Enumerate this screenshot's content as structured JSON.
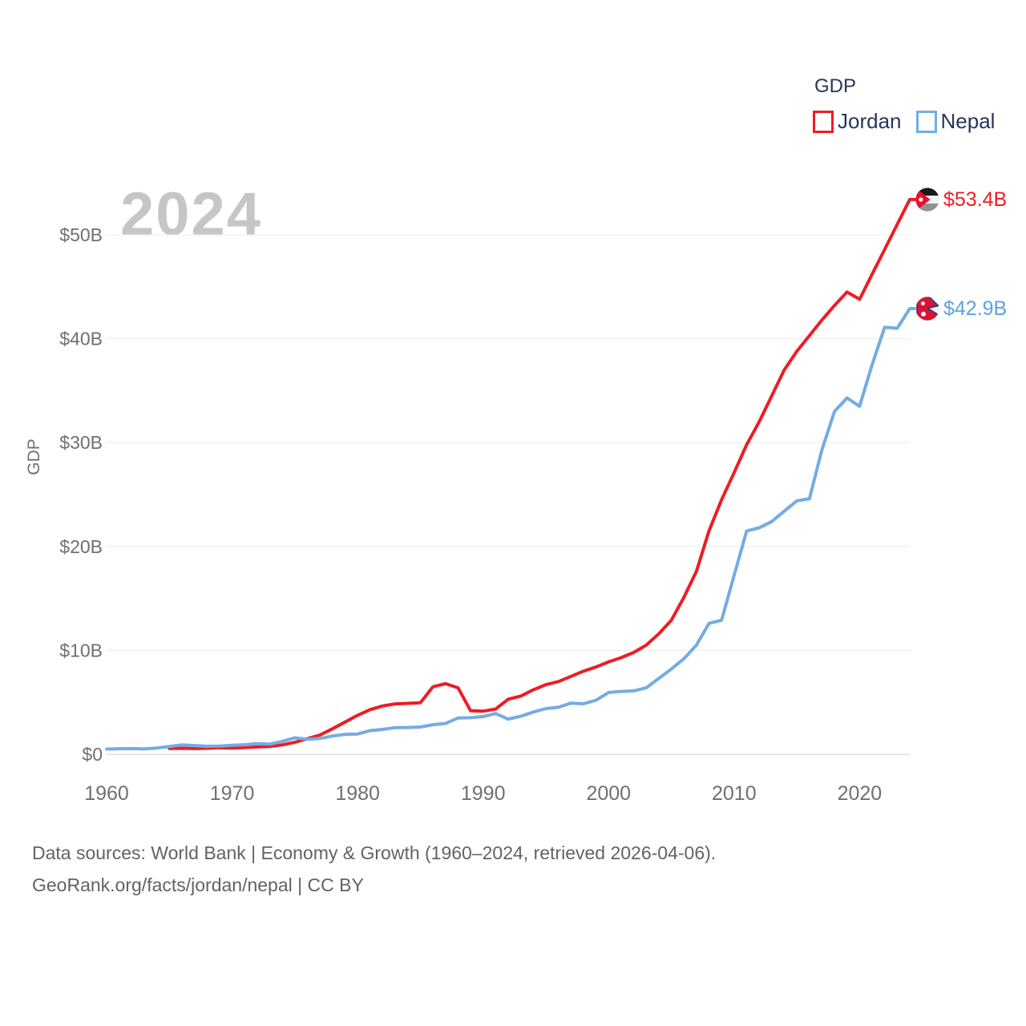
{
  "legend": {
    "title": "GDP",
    "items": [
      {
        "label": "Jordan",
        "color": "#ee1c24"
      },
      {
        "label": "Nepal",
        "color": "#74ace2"
      }
    ]
  },
  "watermark": "2024",
  "y_axis_title": "GDP",
  "end_labels": [
    {
      "series": "Jordan",
      "text": "$53.4B",
      "color": "#ee1c24"
    },
    {
      "series": "Nepal",
      "text": "$42.9B",
      "color": "#5ea3dc"
    }
  ],
  "footer": {
    "line1": "Data sources: World Bank | Economy & Growth (1960–2024, retrieved 2026-04-06).",
    "line2": "GeoRank.org/facts/jordan/nepal | CC BY"
  },
  "chart_data": {
    "type": "line",
    "title": "GDP",
    "xlabel": "",
    "ylabel": "GDP",
    "grid": true,
    "legend_position": "top-right",
    "xlim": [
      1960,
      2024
    ],
    "ylim": [
      0,
      54
    ],
    "x_ticks": [
      {
        "value": 1960,
        "label": "1960"
      },
      {
        "value": 1970,
        "label": "1970"
      },
      {
        "value": 1980,
        "label": "1980"
      },
      {
        "value": 1990,
        "label": "1990"
      },
      {
        "value": 2000,
        "label": "2000"
      },
      {
        "value": 2010,
        "label": "2010"
      },
      {
        "value": 2020,
        "label": "2020"
      }
    ],
    "y_ticks": [
      {
        "value": 0,
        "label": "$0"
      },
      {
        "value": 10,
        "label": "$10B"
      },
      {
        "value": 20,
        "label": "$20B"
      },
      {
        "value": 30,
        "label": "$30B"
      },
      {
        "value": 40,
        "label": "$40B"
      },
      {
        "value": 50,
        "label": "$50B"
      }
    ],
    "series": [
      {
        "name": "Jordan",
        "color": "#ee1c24",
        "unit": "billion USD",
        "start_year": 1965,
        "end_value_label": "$53.4B",
        "values": [
          0.56,
          0.58,
          0.55,
          0.58,
          0.63,
          0.6,
          0.65,
          0.7,
          0.76,
          0.9,
          1.15,
          1.5,
          1.85,
          2.45,
          3.1,
          3.75,
          4.3,
          4.65,
          4.85,
          4.9,
          4.95,
          6.5,
          6.8,
          6.4,
          4.2,
          4.15,
          4.35,
          5.3,
          5.6,
          6.2,
          6.7,
          7.0,
          7.5,
          8.0,
          8.4,
          8.9,
          9.3,
          9.8,
          10.5,
          11.6,
          12.9,
          15.1,
          17.6,
          21.5,
          24.5,
          27.1,
          29.8,
          32.0,
          34.5,
          37.0,
          38.8,
          40.3,
          41.8,
          43.2,
          44.5,
          43.8,
          46.2,
          48.6,
          51.0,
          53.4
        ]
      },
      {
        "name": "Nepal",
        "color": "#74ace2",
        "unit": "billion USD",
        "start_year": 1960,
        "end_value_label": "$42.9B",
        "values": [
          0.5,
          0.53,
          0.55,
          0.52,
          0.6,
          0.74,
          0.91,
          0.84,
          0.77,
          0.79,
          0.87,
          0.92,
          1.02,
          0.97,
          1.24,
          1.58,
          1.45,
          1.53,
          1.75,
          1.92,
          1.95,
          2.28,
          2.39,
          2.57,
          2.58,
          2.62,
          2.85,
          2.96,
          3.49,
          3.52,
          3.63,
          3.92,
          3.38,
          3.66,
          4.07,
          4.4,
          4.52,
          4.92,
          4.86,
          5.2,
          5.95,
          6.05,
          6.1,
          6.4,
          7.3,
          8.2,
          9.2,
          10.5,
          12.6,
          12.9,
          17.2,
          21.5,
          21.8,
          22.4,
          23.4,
          24.4,
          24.6,
          29.3,
          33.0,
          34.3,
          33.5,
          37.5,
          41.1,
          41.0,
          42.9
        ]
      }
    ]
  }
}
